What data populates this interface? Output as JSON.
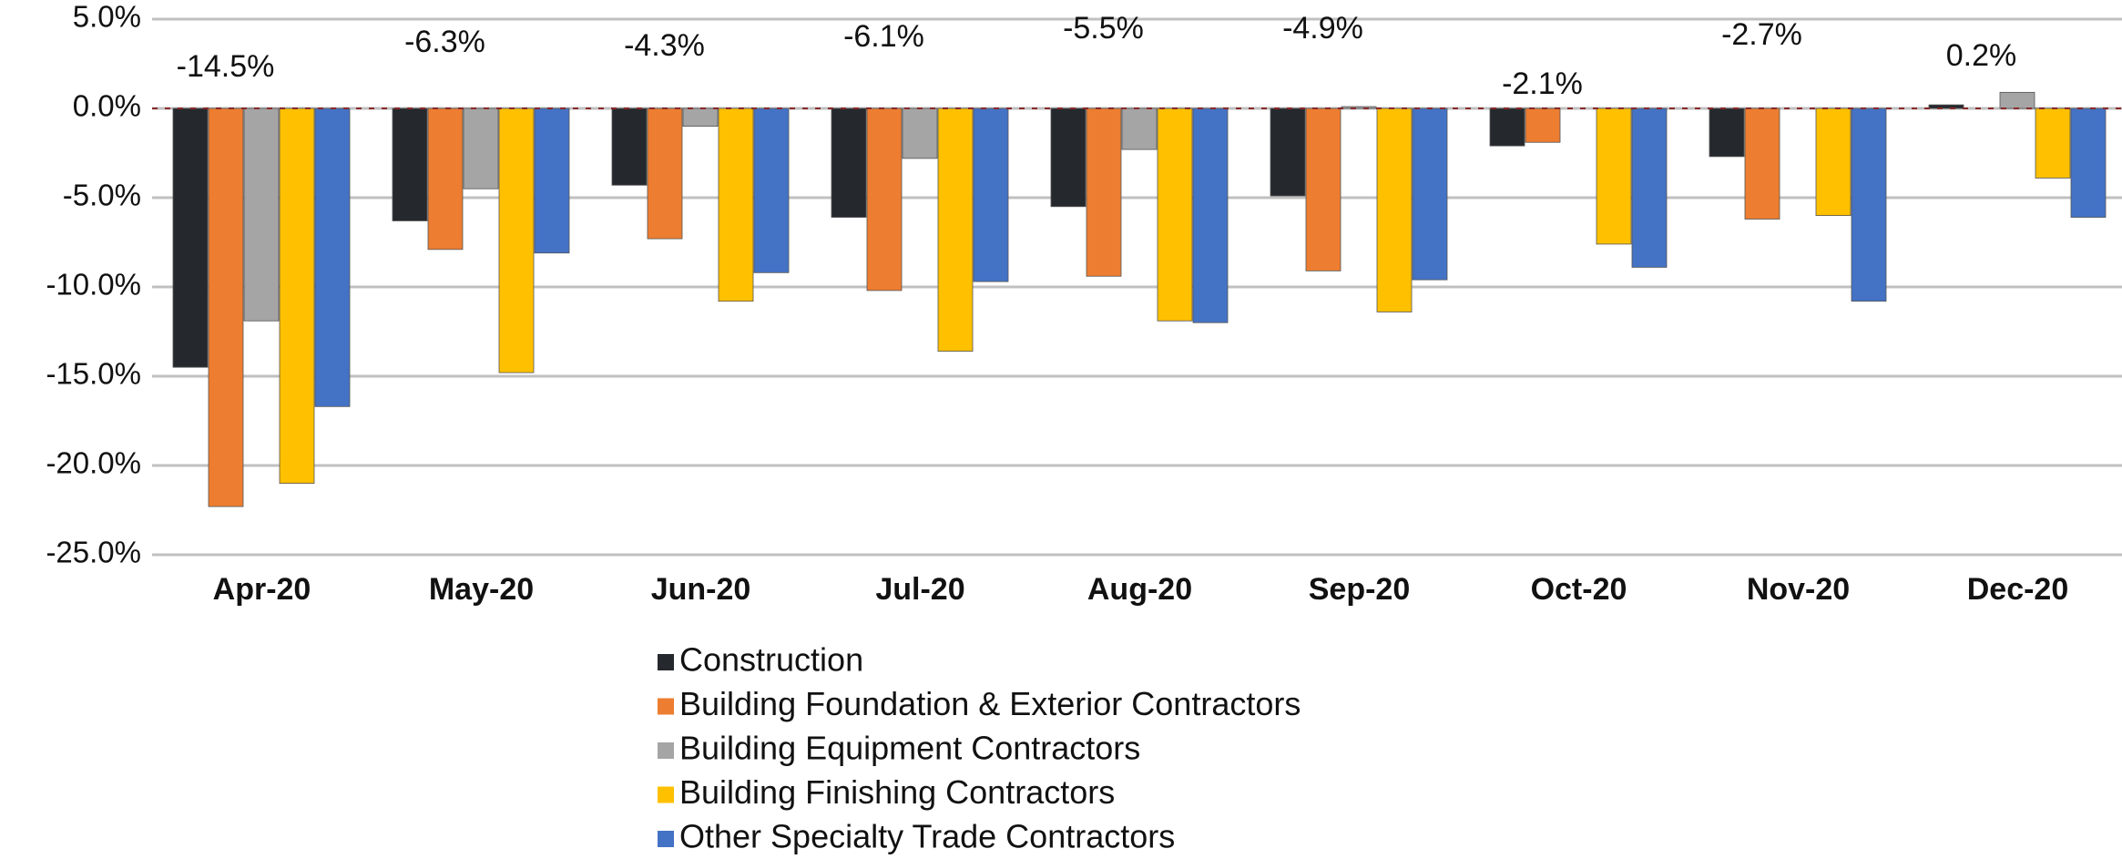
{
  "chart_data": {
    "type": "bar",
    "categories": [
      "Apr-20",
      "May-20",
      "Jun-20",
      "Jul-20",
      "Aug-20",
      "Sep-20",
      "Oct-20",
      "Nov-20",
      "Dec-20"
    ],
    "series": [
      {
        "name": "Construction",
        "color": "#25282d",
        "values": [
          -14.5,
          -6.3,
          -4.3,
          -6.1,
          -5.5,
          -4.9,
          -2.1,
          -2.7,
          0.2
        ],
        "value_labels": [
          "-14.5%",
          "-6.3%",
          "-4.3%",
          "-6.1%",
          "-5.5%",
          "-4.9%",
          "-2.1%",
          "-2.7%",
          "0.2%"
        ]
      },
      {
        "name": "Building Foundation & Exterior Contractors",
        "color": "#ed7d31",
        "values": [
          -22.3,
          -7.9,
          -7.3,
          -10.2,
          -9.4,
          -9.1,
          -1.9,
          -6.2,
          0.0
        ]
      },
      {
        "name": "Building Equipment Contractors",
        "color": "#a5a5a5",
        "values": [
          -11.9,
          -4.5,
          -1.0,
          -2.8,
          -2.3,
          0.1,
          0.0,
          0.0,
          0.9
        ]
      },
      {
        "name": "Building Finishing Contractors",
        "color": "#ffc000",
        "values": [
          -21.0,
          -14.8,
          -10.8,
          -13.6,
          -11.9,
          -11.4,
          -7.6,
          -6.0,
          -3.9
        ]
      },
      {
        "name": "Other Specialty Trade Contractors",
        "color": "#4472c4",
        "values": [
          -16.7,
          -8.1,
          -9.2,
          -9.7,
          -12.0,
          -9.6,
          -8.9,
          -10.8,
          -6.1
        ]
      }
    ],
    "ylim": [
      -25,
      5
    ],
    "yticks": [
      {
        "value": -25,
        "label": "-25.0%"
      },
      {
        "value": -20,
        "label": "-20.0%"
      },
      {
        "value": -15,
        "label": "-15.0%"
      },
      {
        "value": -10,
        "label": "-10.0%"
      },
      {
        "value": -5,
        "label": "-5.0%"
      },
      {
        "value": 0,
        "label": "0.0%"
      },
      {
        "value": 5,
        "label": "5.0%"
      }
    ],
    "grid": true
  }
}
